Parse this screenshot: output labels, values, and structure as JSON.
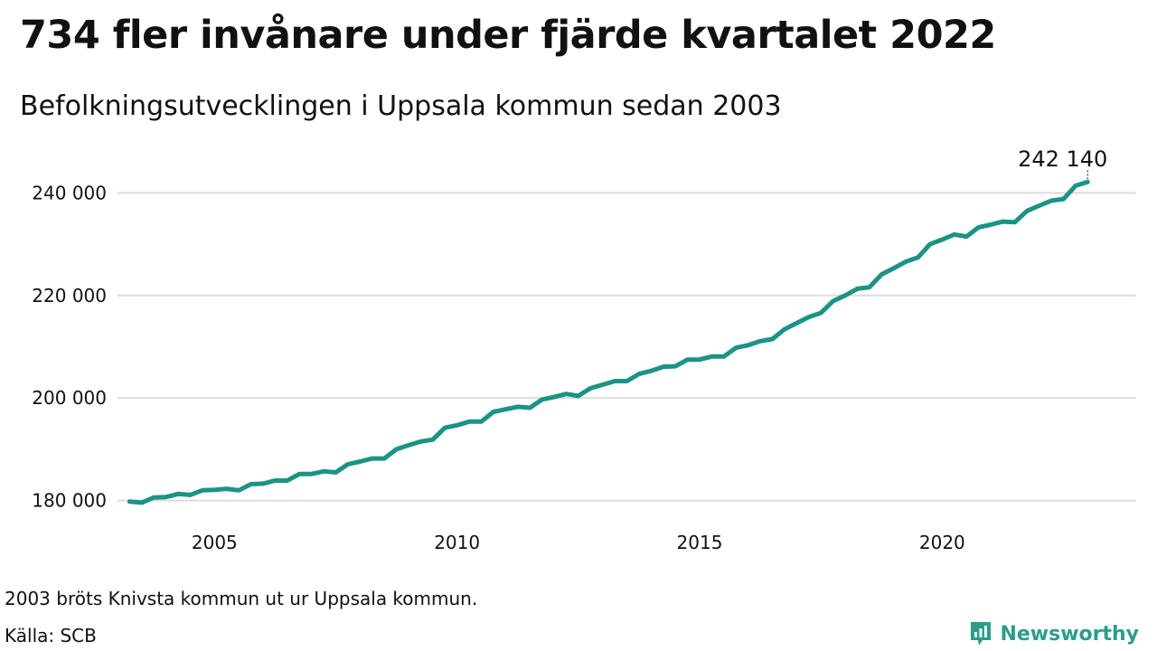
{
  "header": {
    "title": "734 fler invånare under fjärde kvartalet 2022",
    "subtitle": "Befolkningsutvecklingen i Uppsala kommun sedan 2003"
  },
  "footer": {
    "note": "2003 bröts Knivsta kommun ut ur Uppsala kommun.",
    "source": "Källa: SCB",
    "brand": "Newsworthy"
  },
  "colors": {
    "line": "#1a9485",
    "grid": "#dcdcdc",
    "brand": "#2a9d8f"
  },
  "chart_data": {
    "type": "line",
    "title": "734 fler invånare under fjärde kvartalet 2022",
    "subtitle": "Befolkningsutvecklingen i Uppsala kommun sedan 2003",
    "xlabel": "",
    "ylabel": "",
    "xlim": [
      2003.0,
      2024.0
    ],
    "ylim": [
      175000,
      245000
    ],
    "x_ticks": [
      2005,
      2010,
      2015,
      2020
    ],
    "x_tick_labels": [
      "2005",
      "2010",
      "2015",
      "2020"
    ],
    "y_ticks": [
      180000,
      200000,
      220000,
      240000
    ],
    "y_tick_labels": [
      "180 000",
      "200 000",
      "220 000",
      "240 000"
    ],
    "grid": true,
    "end_label": "242 140",
    "series": [
      {
        "x": [
          2003.25,
          2003.5,
          2003.75,
          2004.0,
          2004.25,
          2004.5,
          2004.75,
          2005.0,
          2005.25,
          2005.5,
          2005.75,
          2006.0,
          2006.25,
          2006.5,
          2006.75,
          2007.0,
          2007.25,
          2007.5,
          2007.75,
          2008.0,
          2008.25,
          2008.5,
          2008.75,
          2009.0,
          2009.25,
          2009.5,
          2009.75,
          2010.0,
          2010.25,
          2010.5,
          2010.75,
          2011.0,
          2011.25,
          2011.5,
          2011.75,
          2012.0,
          2012.25,
          2012.5,
          2012.75,
          2013.0,
          2013.25,
          2013.5,
          2013.75,
          2014.0,
          2014.25,
          2014.5,
          2014.75,
          2015.0,
          2015.25,
          2015.5,
          2015.75,
          2016.0,
          2016.25,
          2016.5,
          2016.75,
          2017.0,
          2017.25,
          2017.5,
          2017.75,
          2018.0,
          2018.25,
          2018.5,
          2018.75,
          2019.0,
          2019.25,
          2019.5,
          2019.75,
          2020.0,
          2020.25,
          2020.5,
          2020.75,
          2021.0,
          2021.25,
          2021.5,
          2021.75,
          2022.0,
          2022.25,
          2022.5,
          2022.75,
          2023.0
        ],
        "values": [
          179800,
          179600,
          180600,
          180700,
          181300,
          181100,
          182000,
          182100,
          182300,
          182000,
          183200,
          183300,
          183900,
          183900,
          185200,
          185200,
          185700,
          185500,
          187100,
          187600,
          188200,
          188200,
          190000,
          190800,
          191500,
          191900,
          194200,
          194700,
          195400,
          195400,
          197300,
          197800,
          198300,
          198100,
          199700,
          200200,
          200800,
          200400,
          201900,
          202600,
          203300,
          203300,
          204700,
          205300,
          206100,
          206200,
          207500,
          207500,
          208100,
          208100,
          209800,
          210300,
          211100,
          211500,
          213400,
          214600,
          215800,
          216600,
          218900,
          220000,
          221300,
          221600,
          224100,
          225300,
          226600,
          227400,
          230000,
          230900,
          231900,
          231500,
          233300,
          233800,
          234400,
          234300,
          236500,
          237500,
          238500,
          238800,
          241400,
          242140
        ]
      }
    ]
  }
}
